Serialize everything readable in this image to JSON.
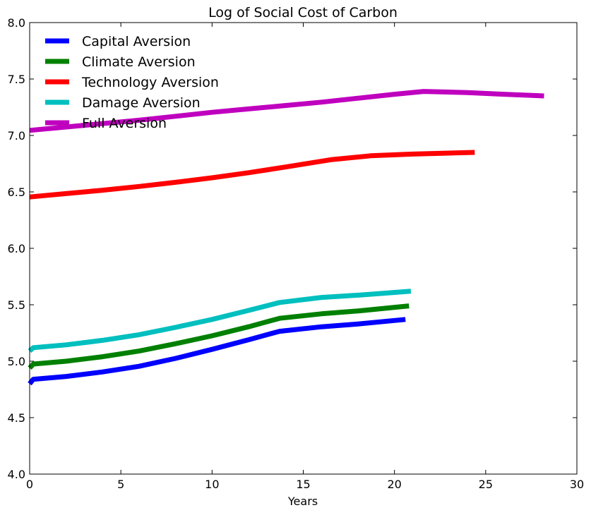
{
  "chart_data": {
    "type": "line",
    "title": "Log of Social Cost of Carbon",
    "xlabel": "Years",
    "ylabel": "",
    "xlim": [
      0,
      30
    ],
    "ylim": [
      4.0,
      8.0
    ],
    "x_ticks": [
      "0",
      "5",
      "10",
      "15",
      "20",
      "25",
      "30"
    ],
    "y_ticks": [
      "4.0",
      "4.5",
      "5.0",
      "5.5",
      "6.0",
      "6.5",
      "7.0",
      "7.5",
      "8.0"
    ],
    "grid": false,
    "legend_position": "top-left",
    "series": [
      {
        "name": "Capital Aversion",
        "color": "#0000ff",
        "x": [
          0,
          0.2,
          2,
          4,
          6,
          8,
          10,
          12,
          13.7,
          16,
          18,
          20.6
        ],
        "y": [
          4.8,
          4.84,
          4.865,
          4.905,
          4.955,
          5.025,
          5.105,
          5.19,
          5.265,
          5.305,
          5.33,
          5.37
        ]
      },
      {
        "name": "Climate Aversion",
        "color": "#008000",
        "x": [
          0,
          0.2,
          2,
          4,
          6,
          8,
          10,
          12,
          13.7,
          16,
          18,
          20.8
        ],
        "y": [
          4.94,
          4.975,
          5.0,
          5.04,
          5.09,
          5.155,
          5.225,
          5.305,
          5.38,
          5.42,
          5.445,
          5.49
        ]
      },
      {
        "name": "Technology Aversion",
        "color": "#ff0000",
        "x": [
          0,
          2,
          4,
          6,
          8,
          10,
          12,
          14,
          16.5,
          18.7,
          21,
          24.4
        ],
        "y": [
          6.455,
          6.485,
          6.515,
          6.548,
          6.585,
          6.625,
          6.67,
          6.72,
          6.785,
          6.82,
          6.835,
          6.85
        ]
      },
      {
        "name": "Damage Aversion",
        "color": "#00bfbf",
        "x": [
          0,
          0.2,
          2,
          4,
          6,
          8,
          10,
          12,
          13.7,
          16,
          18,
          20.9
        ],
        "y": [
          5.09,
          5.12,
          5.145,
          5.185,
          5.235,
          5.3,
          5.37,
          5.45,
          5.52,
          5.565,
          5.585,
          5.62
        ]
      },
      {
        "name": "Full Aversion",
        "color": "#bf00bf",
        "x": [
          0,
          2,
          4,
          6,
          8,
          10,
          12,
          14,
          16,
          18,
          20,
          21.6,
          24,
          26,
          28.2
        ],
        "y": [
          7.045,
          7.075,
          7.105,
          7.135,
          7.17,
          7.205,
          7.235,
          7.265,
          7.295,
          7.33,
          7.365,
          7.39,
          7.38,
          7.365,
          7.35
        ]
      }
    ]
  }
}
